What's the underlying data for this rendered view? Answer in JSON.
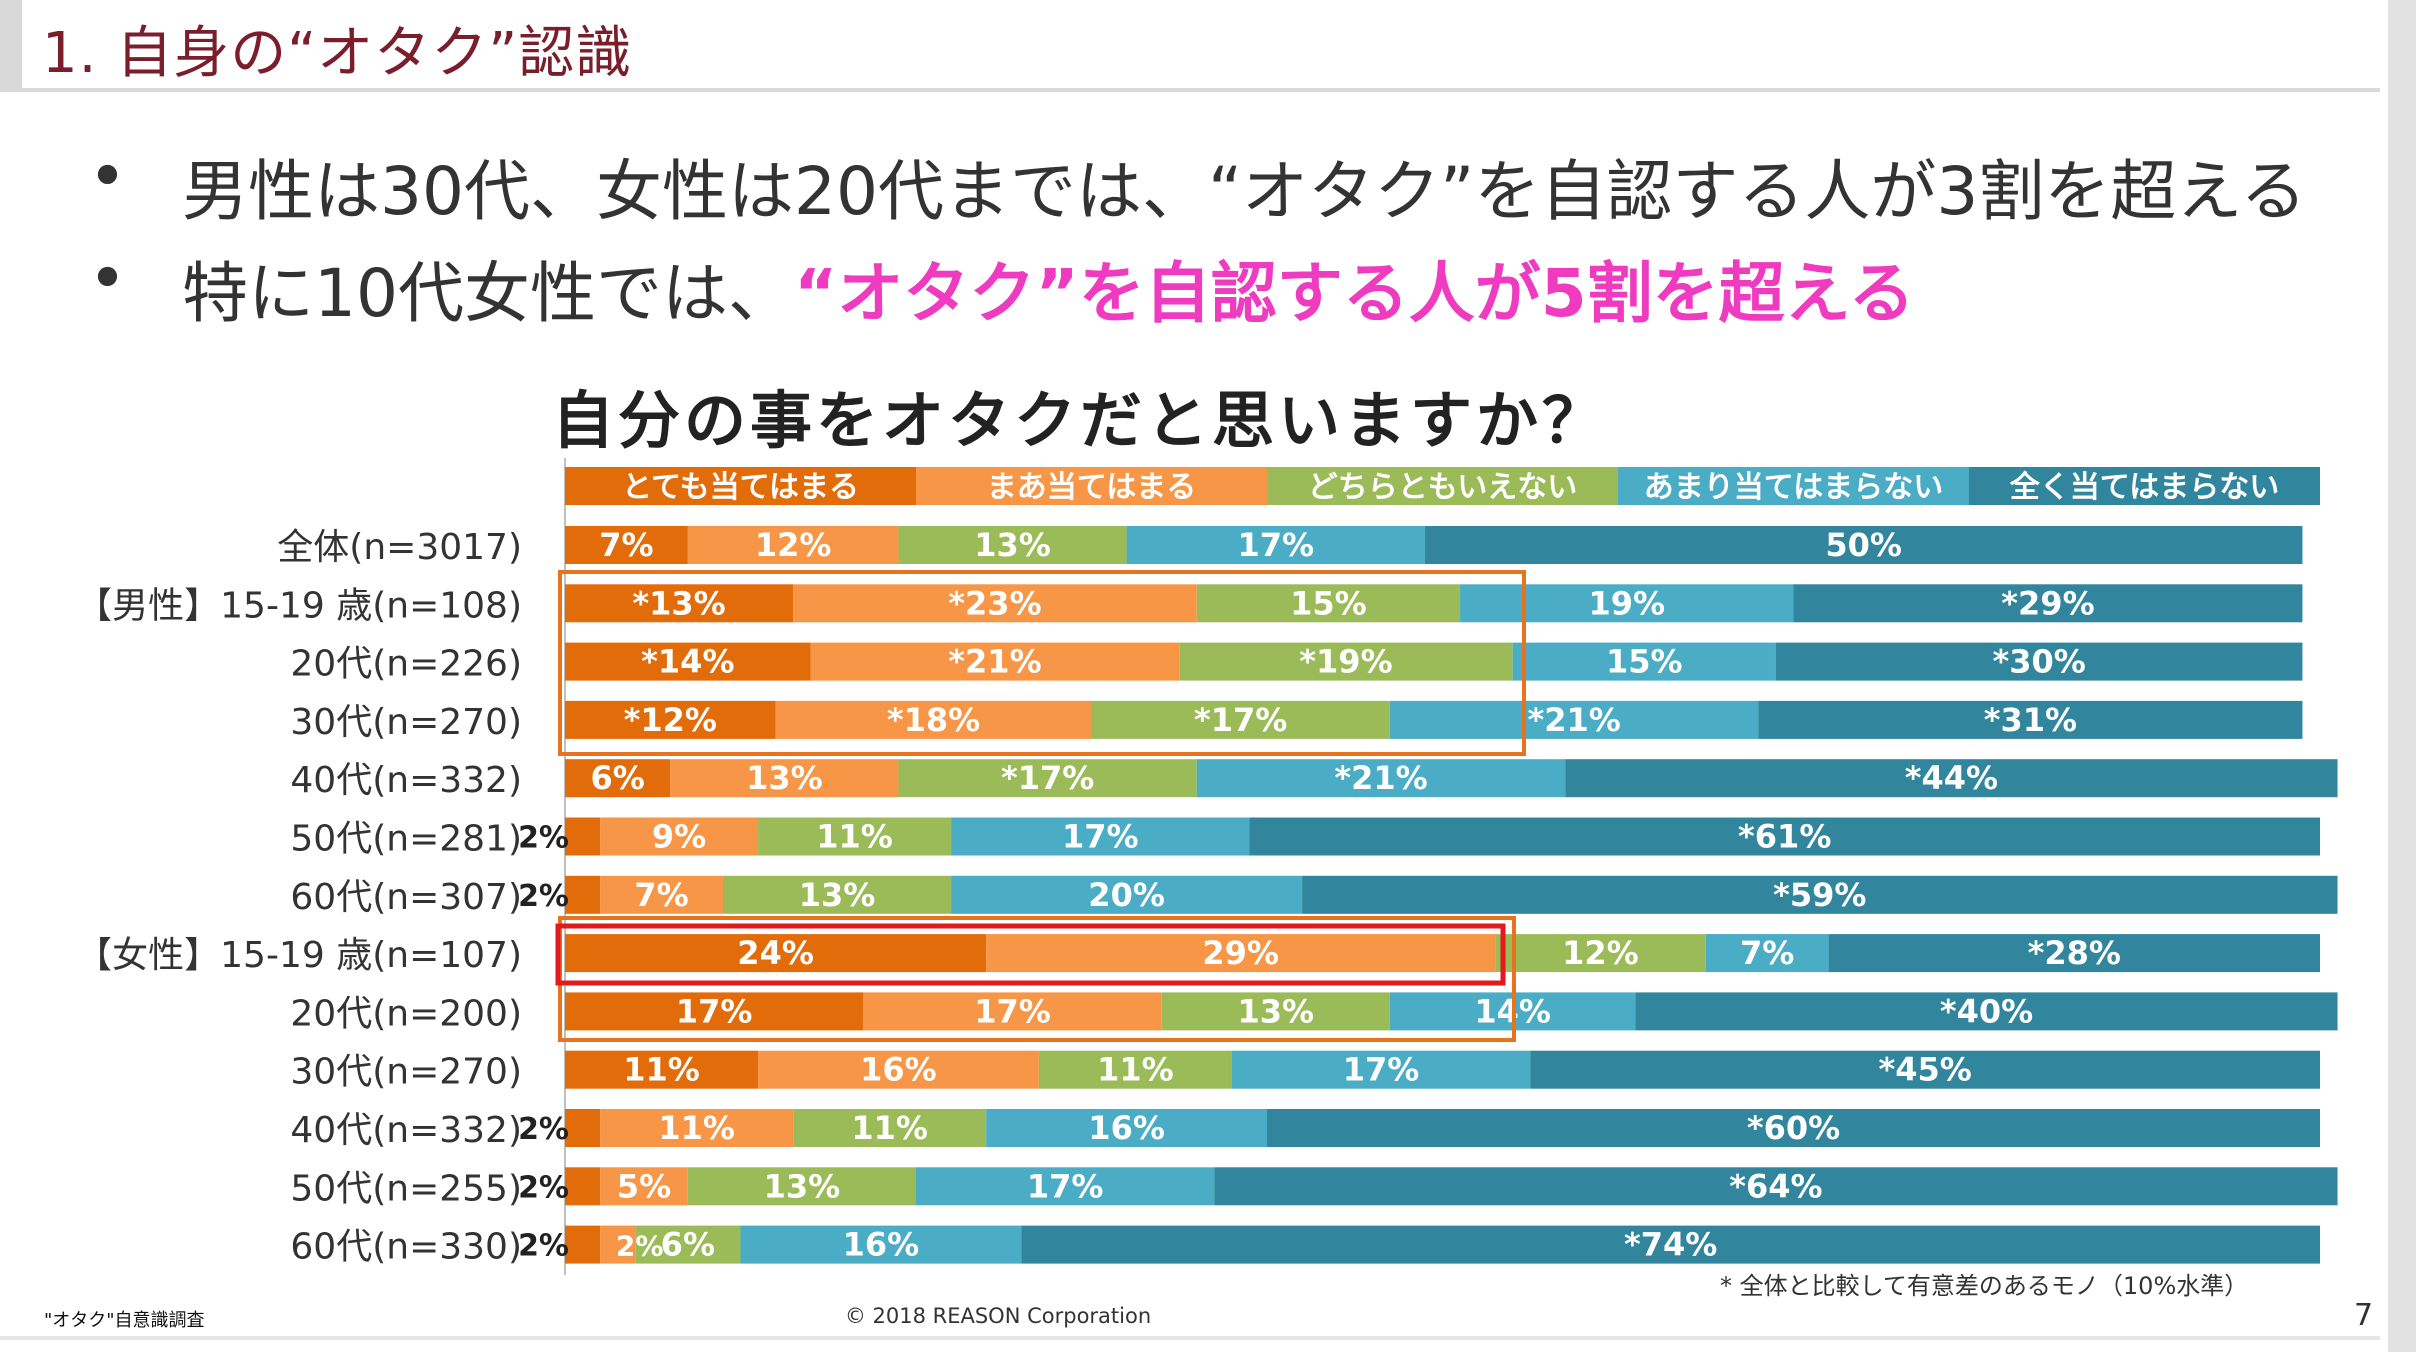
{
  "header": {
    "title": "1. 自身の“オタク”認識"
  },
  "bullets": [
    {
      "marker": "•",
      "text": "男性は30代、女性は20代までは、“オタク”を自認する人が3割を超える",
      "highlight": ""
    },
    {
      "marker": "•",
      "text": "特に10代女性では、",
      "highlight": "“オタク”を自認する人が5割を超える"
    }
  ],
  "colors": {
    "header_title": "#7b1e2c",
    "highlight": "#ee3bbf",
    "box_orange": "#e8731e",
    "box_red": "#e31a1c"
  },
  "chart_data": {
    "type": "bar",
    "orientation": "horizontal",
    "stacked": true,
    "percent": true,
    "title": "自分の事をオタクだと思いますか？",
    "legend_position": "top",
    "categories": [
      "全体(n=3017)",
      "【男性】15-19 歳(n=108)",
      "20代(n=226)",
      "30代(n=270)",
      "40代(n=332)",
      "50代(n=281)",
      "60代(n=307)",
      "【女性】15-19 歳(n=107)",
      "20代(n=200)",
      "30代(n=270)",
      "40代(n=332)",
      "50代(n=255)",
      "60代(n=330)"
    ],
    "series": [
      {
        "name": "とても当てはまる",
        "color": "#e36c0a",
        "values": [
          7,
          13,
          14,
          12,
          6,
          2,
          2,
          24,
          17,
          11,
          2,
          2,
          2
        ],
        "labels": [
          "7%",
          "*13%",
          "*14%",
          "*12%",
          "6%",
          "2%",
          "2%",
          "24%",
          "17%",
          "11%",
          "2%",
          "2%",
          "2%"
        ]
      },
      {
        "name": "まあ当てはまる",
        "color": "#f79646",
        "values": [
          12,
          23,
          21,
          18,
          13,
          9,
          7,
          29,
          17,
          16,
          11,
          5,
          2
        ],
        "labels": [
          "12%",
          "*23%",
          "*21%",
          "*18%",
          "13%",
          "9%",
          "7%",
          "29%",
          "17%",
          "16%",
          "11%",
          "5%",
          "2%"
        ]
      },
      {
        "name": "どちらともいえない",
        "color": "#9bbb59",
        "values": [
          13,
          15,
          19,
          17,
          17,
          11,
          13,
          12,
          13,
          11,
          11,
          13,
          6
        ],
        "labels": [
          "13%",
          "15%",
          "*19%",
          "*17%",
          "*17%",
          "11%",
          "13%",
          "12%",
          "13%",
          "11%",
          "11%",
          "13%",
          "6%"
        ]
      },
      {
        "name": "あまり当てはまらない",
        "color": "#4bacc6",
        "values": [
          17,
          19,
          15,
          21,
          21,
          17,
          20,
          7,
          14,
          17,
          16,
          17,
          16
        ],
        "labels": [
          "17%",
          "19%",
          "15%",
          "*21%",
          "*21%",
          "17%",
          "20%",
          "7%",
          "14%",
          "17%",
          "16%",
          "17%",
          "16%"
        ]
      },
      {
        "name": "全く当てはまらない",
        "color": "#31859c",
        "values": [
          50,
          29,
          30,
          31,
          44,
          61,
          59,
          28,
          40,
          45,
          60,
          64,
          74
        ],
        "labels": [
          "50%",
          "*29%",
          "*30%",
          "*31%",
          "*44%",
          "*61%",
          "*59%",
          "*28%",
          "*40%",
          "*45%",
          "*60%",
          "*64%",
          "*74%"
        ]
      }
    ],
    "outside_labels": [
      "",
      "",
      "",
      "",
      "",
      "2%",
      "2%",
      "",
      "",
      "",
      "2%",
      "2%",
      "2%"
    ],
    "annotation": "* 全体と比較して有意差のあるモノ（10%水準）"
  },
  "footer": {
    "left": "\"オタク\"自意識調査",
    "center": "© 2018 REASON Corporation",
    "page": "7"
  }
}
